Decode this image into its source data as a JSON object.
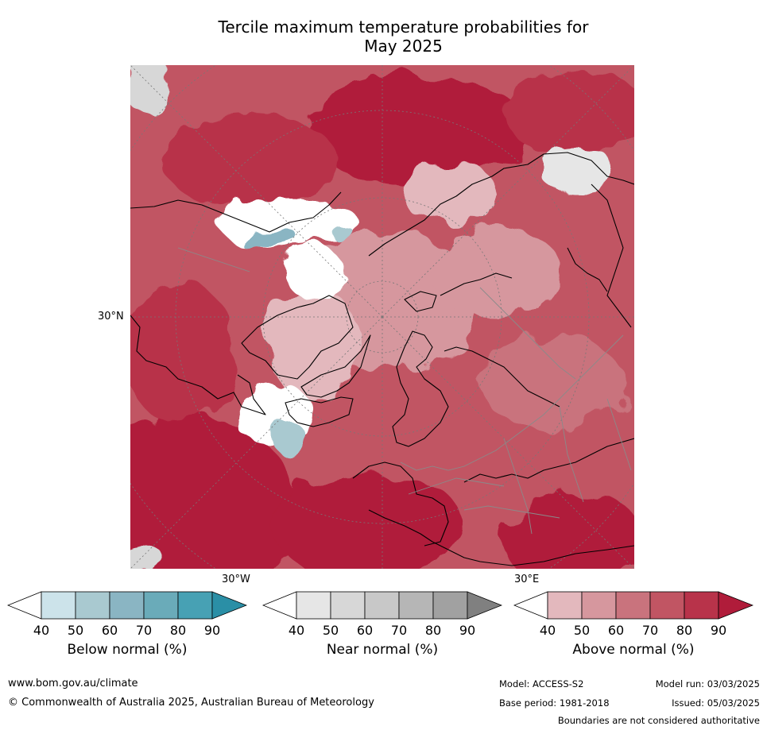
{
  "title": {
    "line1": "Tercile maximum temperature probabilities for",
    "line2": "May 2025"
  },
  "map": {
    "lat_label": "30°N",
    "lon_labels": [
      "30°W",
      "30°E"
    ],
    "colors": {
      "land_outline": "#000000",
      "borders": "#8a8a8a",
      "graticule": "#777777"
    }
  },
  "legends": [
    {
      "id": "below",
      "title": "Below normal (%)",
      "ticks": [
        "40",
        "50",
        "60",
        "70",
        "80",
        "90"
      ],
      "colors": [
        "#ffffff",
        "#cce3ea",
        "#a9c9d0",
        "#8ab5c3",
        "#6aabb9",
        "#47a1b4",
        "#2a8fa6"
      ]
    },
    {
      "id": "near",
      "title": "Near normal (%)",
      "ticks": [
        "40",
        "50",
        "60",
        "70",
        "80",
        "90"
      ],
      "colors": [
        "#ffffff",
        "#e6e6e6",
        "#d7d7d7",
        "#c8c8c8",
        "#b6b6b6",
        "#a1a1a1",
        "#808080"
      ]
    },
    {
      "id": "above",
      "title": "Above normal (%)",
      "ticks": [
        "40",
        "50",
        "60",
        "70",
        "80",
        "90"
      ],
      "colors": [
        "#ffffff",
        "#e3b8bd",
        "#d6979e",
        "#c9737d",
        "#c15563",
        "#b8334a",
        "#b01c3a"
      ]
    }
  ],
  "footer": {
    "url": "www.bom.gov.au/climate",
    "copyright": "© Commonwealth of Australia 2025, Australian Bureau of Meteorology",
    "model": "Model: ACCESS-S2",
    "base_period": "Base period: 1981-2018",
    "model_run": "Model run: 03/03/2025",
    "issued": "Issued: 05/03/2025",
    "disclaimer": "Boundaries are not considered authoritative"
  }
}
